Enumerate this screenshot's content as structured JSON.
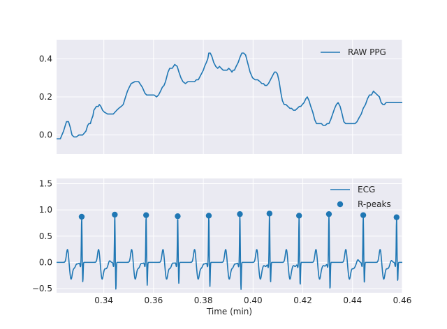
{
  "colors": {
    "series": "#1f77b4",
    "panel_bg": "#eaeaf2",
    "grid": "#ffffff",
    "text": "#262626"
  },
  "chart_data": [
    {
      "type": "line",
      "title": "",
      "xlabel": "",
      "ylabel": "",
      "xlim": [
        0.321,
        0.46
      ],
      "ylim": [
        -0.1,
        0.5
      ],
      "yticks": [
        0.0,
        0.2,
        0.4
      ],
      "ytick_labels": [
        "0.0",
        "0.2",
        "0.4"
      ],
      "grid": true,
      "legend": "upper right",
      "series": [
        {
          "name": "RAW PPG",
          "x": [
            0.321,
            0.3225,
            0.3238,
            0.3245,
            0.325,
            0.3258,
            0.3265,
            0.3272,
            0.328,
            0.329,
            0.33,
            0.3315,
            0.3328,
            0.3335,
            0.334,
            0.3346,
            0.335,
            0.3356,
            0.336,
            0.337,
            0.3378,
            0.3382,
            0.3388,
            0.3395,
            0.3402,
            0.3415,
            0.3428,
            0.3438,
            0.3445,
            0.3452,
            0.346,
            0.347,
            0.3478,
            0.3485,
            0.349,
            0.3495,
            0.3502,
            0.351,
            0.3525,
            0.354,
            0.3555,
            0.3565,
            0.3572,
            0.358,
            0.359,
            0.3602,
            0.3612,
            0.362,
            0.3628,
            0.3635,
            0.3642,
            0.3648,
            0.3652,
            0.3658,
            0.3665,
            0.3675,
            0.3685,
            0.3695,
            0.3702,
            0.371,
            0.3718,
            0.3728,
            0.3738,
            0.3748,
            0.3758,
            0.3765,
            0.3772,
            0.378,
            0.3788,
            0.3796,
            0.38,
            0.3805,
            0.3812,
            0.3818,
            0.3822,
            0.3828,
            0.3835,
            0.3842,
            0.385,
            0.3858,
            0.3865,
            0.3872,
            0.388,
            0.3888,
            0.3895,
            0.3902,
            0.391,
            0.3915,
            0.392,
            0.3925,
            0.3932,
            0.394,
            0.3948,
            0.3955,
            0.3962,
            0.397,
            0.3978,
            0.3988,
            0.3998,
            0.4008,
            0.4018,
            0.4028,
            0.4035,
            0.4042,
            0.4048,
            0.4055,
            0.4062,
            0.407,
            0.4078,
            0.4086,
            0.4092,
            0.4098,
            0.4105,
            0.4112,
            0.4118,
            0.4125,
            0.4132,
            0.414,
            0.4148,
            0.4155,
            0.4162,
            0.417,
            0.4178,
            0.4186,
            0.4192,
            0.4198,
            0.4205,
            0.4212,
            0.4218,
            0.4225,
            0.4232,
            0.424,
            0.4248,
            0.4255,
            0.4262,
            0.4268,
            0.4275,
            0.4282,
            0.429,
            0.4298,
            0.4305,
            0.4312,
            0.432,
            0.4328,
            0.4335,
            0.4342,
            0.435,
            0.4358,
            0.4365,
            0.4372,
            0.438,
            0.4388,
            0.4395,
            0.4402,
            0.441,
            0.4418,
            0.4426,
            0.4435,
            0.4443,
            0.4452,
            0.446,
            0.4468,
            0.4476,
            0.4484,
            0.4492,
            0.45,
            0.4508,
            0.4515,
            0.4522,
            0.4528,
            0.4535,
            0.4542,
            0.4548,
            0.4555,
            0.4562,
            0.457,
            0.4578,
            0.4585,
            0.4592,
            0.46
          ],
          "values": [
            -0.02,
            -0.02,
            0.02,
            0.05,
            0.07,
            0.07,
            0.04,
            0.0,
            -0.01,
            -0.01,
            0.0,
            0.0,
            0.02,
            0.05,
            0.06,
            0.06,
            0.08,
            0.1,
            0.13,
            0.15,
            0.15,
            0.16,
            0.15,
            0.13,
            0.12,
            0.11,
            0.11,
            0.11,
            0.12,
            0.13,
            0.14,
            0.15,
            0.16,
            0.19,
            0.21,
            0.23,
            0.25,
            0.27,
            0.28,
            0.28,
            0.25,
            0.22,
            0.21,
            0.21,
            0.21,
            0.21,
            0.2,
            0.21,
            0.23,
            0.25,
            0.26,
            0.28,
            0.3,
            0.33,
            0.35,
            0.35,
            0.37,
            0.36,
            0.33,
            0.3,
            0.28,
            0.27,
            0.28,
            0.28,
            0.28,
            0.28,
            0.29,
            0.29,
            0.31,
            0.33,
            0.34,
            0.36,
            0.38,
            0.4,
            0.43,
            0.43,
            0.41,
            0.38,
            0.36,
            0.35,
            0.36,
            0.35,
            0.34,
            0.34,
            0.34,
            0.35,
            0.34,
            0.33,
            0.34,
            0.34,
            0.36,
            0.38,
            0.41,
            0.43,
            0.43,
            0.42,
            0.38,
            0.33,
            0.3,
            0.29,
            0.29,
            0.28,
            0.27,
            0.27,
            0.26,
            0.26,
            0.27,
            0.29,
            0.31,
            0.33,
            0.33,
            0.32,
            0.28,
            0.22,
            0.18,
            0.16,
            0.16,
            0.15,
            0.14,
            0.14,
            0.13,
            0.13,
            0.14,
            0.15,
            0.15,
            0.16,
            0.17,
            0.19,
            0.2,
            0.18,
            0.15,
            0.12,
            0.08,
            0.06,
            0.06,
            0.06,
            0.06,
            0.05,
            0.05,
            0.06,
            0.06,
            0.08,
            0.11,
            0.14,
            0.16,
            0.17,
            0.15,
            0.11,
            0.07,
            0.06,
            0.06,
            0.06,
            0.06,
            0.06,
            0.06,
            0.07,
            0.09,
            0.11,
            0.14,
            0.16,
            0.19,
            0.21,
            0.21,
            0.23,
            0.22,
            0.21,
            0.2,
            0.17,
            0.16,
            0.16,
            0.17,
            0.17,
            0.17,
            0.17,
            0.17,
            0.17,
            0.17,
            0.17,
            0.17,
            0.17
          ]
        }
      ]
    },
    {
      "type": "line",
      "title": "",
      "xlabel": "Time (min)",
      "ylabel": "",
      "xlim": [
        0.321,
        0.46
      ],
      "ylim": [
        -0.58,
        1.6
      ],
      "xticks": [
        0.34,
        0.36,
        0.38,
        0.4,
        0.42,
        0.44,
        0.46
      ],
      "xtick_labels": [
        "0.34",
        "0.36",
        "0.38",
        "0.40",
        "0.42",
        "0.44",
        "0.46"
      ],
      "yticks": [
        -0.5,
        0.0,
        0.5,
        1.0,
        1.5
      ],
      "ytick_labels": [
        "−0.5",
        "0.0",
        "0.5",
        "1.0",
        "1.5"
      ],
      "grid": true,
      "legend": "upper right",
      "ecg_wave": {
        "period_mean": 0.0125,
        "pre_peak_dip": -0.3,
        "post_r_trough": -0.4,
        "baseline": 0.0
      },
      "series": [
        {
          "name": "ECG",
          "kind": "line"
        },
        {
          "name": "R-peaks",
          "kind": "scatter",
          "x": [
            0.3311,
            0.3444,
            0.357,
            0.3697,
            0.3822,
            0.3947,
            0.4066,
            0.4185,
            0.4305,
            0.4443,
            0.4577
          ],
          "values": [
            0.87,
            0.91,
            0.9,
            0.88,
            0.89,
            0.92,
            0.93,
            0.89,
            0.92,
            0.9,
            0.86
          ]
        }
      ]
    }
  ]
}
